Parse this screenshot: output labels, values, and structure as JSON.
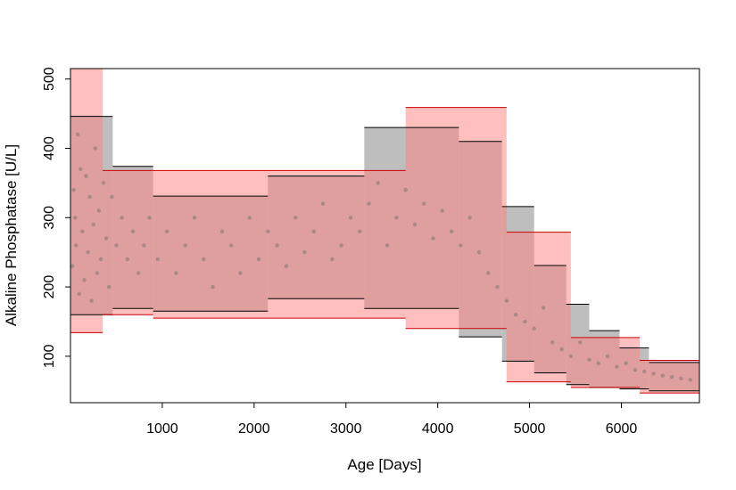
{
  "chart_data": {
    "type": "area",
    "title": "",
    "xlabel": "Age [Days]",
    "ylabel": "Alkaline Phosphatase [U/L]",
    "xlim": [
      0,
      6850
    ],
    "ylim": [
      33,
      515
    ],
    "xticks": [
      1000,
      2000,
      3000,
      4000,
      5000,
      6000
    ],
    "yticks": [
      100,
      200,
      300,
      400,
      500
    ],
    "grid": false,
    "legend": "none",
    "colors": {
      "series_a_fill": "#bebebe",
      "series_a_line": "#000000",
      "series_b_fill": "#ff8080",
      "series_b_line": "#cc0000",
      "points": "#a08080",
      "overlap": "#c98383"
    },
    "series": [
      {
        "values": [
          {
            "x0": 0,
            "x1": 350,
            "lower": 160,
            "upper": 446
          },
          {
            "x0": 350,
            "x1": 460,
            "lower": 160,
            "upper": 446
          },
          {
            "x0": 460,
            "x1": 900,
            "lower": 169,
            "upper": 374
          },
          {
            "x0": 900,
            "x1": 2150,
            "lower": 165,
            "upper": 331
          },
          {
            "x0": 2150,
            "x1": 3200,
            "lower": 183,
            "upper": 360
          },
          {
            "x0": 3200,
            "x1": 4230,
            "lower": 169,
            "upper": 430
          },
          {
            "x0": 4230,
            "x1": 4700,
            "lower": 128,
            "upper": 410
          },
          {
            "x0": 4700,
            "x1": 5050,
            "lower": 93,
            "upper": 316
          },
          {
            "x0": 5050,
            "x1": 5400,
            "lower": 76,
            "upper": 231
          },
          {
            "x0": 5400,
            "x1": 5650,
            "lower": 59,
            "upper": 175
          },
          {
            "x0": 5650,
            "x1": 5980,
            "lower": 55,
            "upper": 137
          },
          {
            "x0": 5980,
            "x1": 6300,
            "lower": 53,
            "upper": 112
          },
          {
            "x0": 6300,
            "x1": 6850,
            "lower": 50,
            "upper": 91
          }
        ]
      },
      {
        "values": [
          {
            "x0": 0,
            "x1": 350,
            "lower": 134,
            "upper": 515
          },
          {
            "x0": 350,
            "x1": 900,
            "lower": 160,
            "upper": 368
          },
          {
            "x0": 900,
            "x1": 3650,
            "lower": 155,
            "upper": 368
          },
          {
            "x0": 3650,
            "x1": 4750,
            "lower": 140,
            "upper": 459
          },
          {
            "x0": 4750,
            "x1": 5450,
            "lower": 63,
            "upper": 279
          },
          {
            "x0": 5450,
            "x1": 6200,
            "lower": 55,
            "upper": 127
          },
          {
            "x0": 6200,
            "x1": 6850,
            "lower": 47,
            "upper": 94
          }
        ]
      }
    ],
    "scatter": {
      "note_none": "",
      "x": [
        20,
        35,
        50,
        60,
        80,
        95,
        110,
        130,
        150,
        170,
        190,
        210,
        230,
        250,
        270,
        290,
        310,
        330,
        360,
        390,
        420,
        450,
        500,
        560,
        620,
        680,
        740,
        800,
        860,
        950,
        1050,
        1150,
        1250,
        1350,
        1450,
        1550,
        1650,
        1750,
        1850,
        1950,
        2050,
        2150,
        2250,
        2350,
        2450,
        2550,
        2650,
        2750,
        2850,
        2950,
        3050,
        3150,
        3250,
        3350,
        3450,
        3550,
        3650,
        3750,
        3850,
        3950,
        4050,
        4150,
        4250,
        4350,
        4450,
        4550,
        4650,
        4750,
        4850,
        4950,
        5050,
        5150,
        5250,
        5350,
        5450,
        5550,
        5650,
        5750,
        5850,
        5950,
        6050,
        6150,
        6250,
        6350,
        6450,
        6550,
        6650,
        6750
      ],
      "y": [
        230,
        340,
        300,
        260,
        420,
        190,
        370,
        280,
        210,
        360,
        250,
        330,
        180,
        290,
        400,
        220,
        310,
        240,
        350,
        270,
        200,
        330,
        260,
        300,
        240,
        280,
        220,
        260,
        300,
        240,
        280,
        220,
        260,
        300,
        240,
        200,
        280,
        260,
        220,
        300,
        240,
        280,
        260,
        230,
        300,
        250,
        280,
        320,
        240,
        260,
        300,
        280,
        320,
        350,
        260,
        300,
        340,
        290,
        320,
        270,
        310,
        280,
        260,
        300,
        250,
        220,
        200,
        180,
        160,
        150,
        140,
        170,
        120,
        110,
        100,
        120,
        95,
        90,
        100,
        85,
        90,
        80,
        78,
        75,
        72,
        70,
        68,
        66
      ]
    }
  }
}
